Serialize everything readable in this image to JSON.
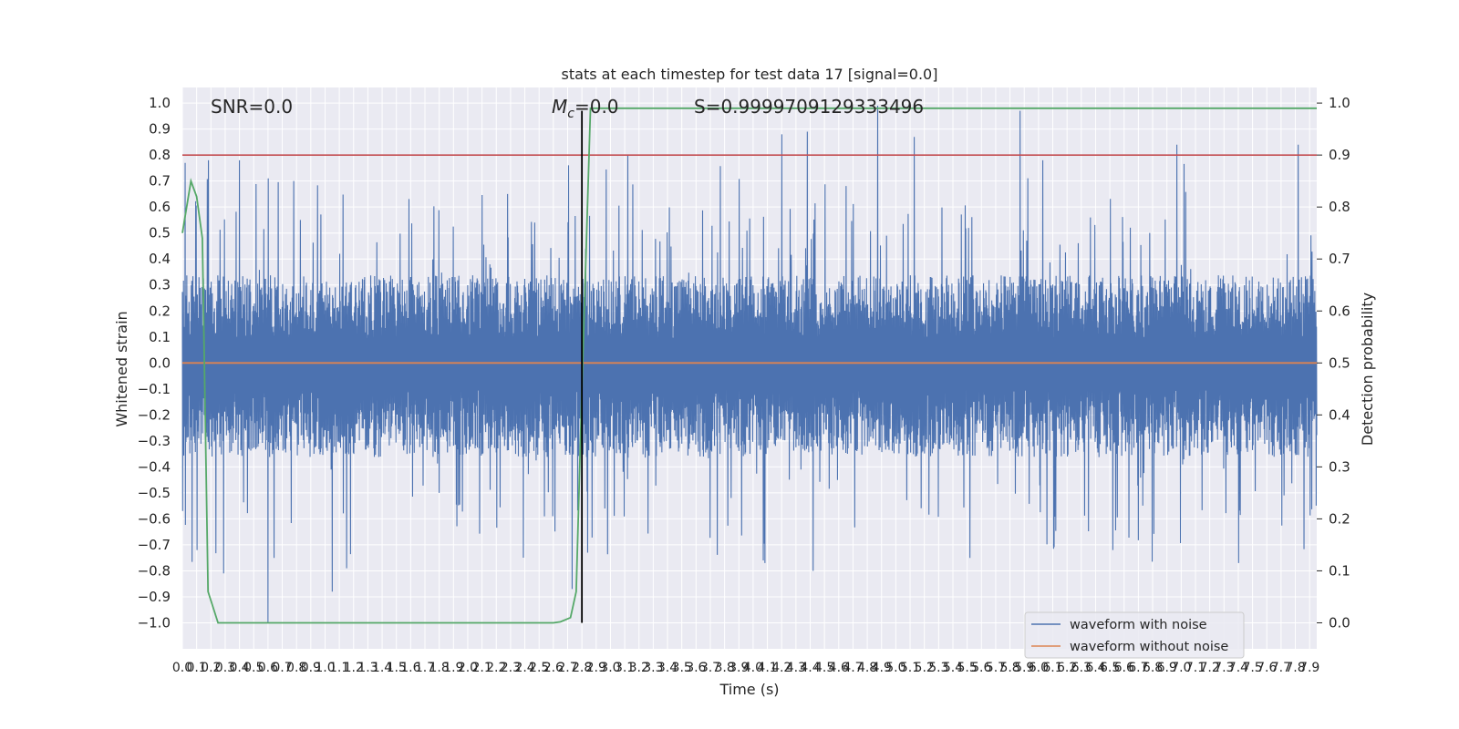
{
  "chart_data": {
    "type": "line",
    "title": "stats at each timestep for test data 17 [signal=0.0]",
    "xlabel": "Time (s)",
    "ylabel": "Whitened strain",
    "ylabel_right": "Detection probability",
    "xlim": [
      0.0,
      7.95
    ],
    "ylim": [
      -1.1,
      1.06
    ],
    "ylim_right": [
      -0.05,
      1.03
    ],
    "grid": true,
    "x_ticks": [
      "0.0",
      "0.1",
      "0.2",
      "0.3",
      "0.4",
      "0.5",
      "0.6",
      "0.7",
      "0.8",
      "0.9",
      "1.0",
      "1.1",
      "1.2",
      "1.3",
      "1.4",
      "1.5",
      "1.6",
      "1.7",
      "1.8",
      "1.9",
      "2.0",
      "2.1",
      "2.2",
      "2.3",
      "2.4",
      "2.5",
      "2.6",
      "2.7",
      "2.8",
      "2.9",
      "3.0",
      "3.1",
      "3.2",
      "3.3",
      "3.4",
      "3.5",
      "3.6",
      "3.7",
      "3.8",
      "3.9",
      "4.0",
      "4.1",
      "4.2",
      "4.3",
      "4.4",
      "4.5",
      "4.6",
      "4.7",
      "4.8",
      "4.9",
      "5.0",
      "5.1",
      "5.2",
      "5.3",
      "5.4",
      "5.5",
      "5.6",
      "5.7",
      "5.8",
      "5.9",
      "6.0",
      "6.1",
      "6.2",
      "6.3",
      "6.4",
      "6.5",
      "6.6",
      "6.7",
      "6.8",
      "6.9",
      "7.0",
      "7.1",
      "7.2",
      "7.3",
      "7.4",
      "7.5",
      "7.6",
      "7.7",
      "7.8",
      "7.9"
    ],
    "y_ticks_left": [
      "1.0",
      "0.9",
      "0.8",
      "0.7",
      "0.6",
      "0.5",
      "0.4",
      "0.3",
      "0.2",
      "0.1",
      "0.0",
      "−0.1",
      "−0.2",
      "−0.3",
      "−0.4",
      "−0.5",
      "−0.6",
      "−0.7",
      "−0.8",
      "−0.9",
      "−1.0"
    ],
    "y_ticks_right": [
      "1.0",
      "0.9",
      "0.8",
      "0.7",
      "0.6",
      "0.5",
      "0.4",
      "0.3",
      "0.2",
      "0.1",
      "0.0"
    ],
    "annotations": {
      "snr": "SNR=0.0",
      "mc_symbol": "M",
      "mc_subscript": "c",
      "mc_value": "=0.0",
      "s": "S=0.9999709129333496"
    },
    "legend": {
      "placement": "lower-right",
      "entries": [
        "waveform with noise",
        "waveform without noise"
      ]
    },
    "colors": {
      "noise": "#4c72b0",
      "clean": "#dd8452",
      "probability": "#55a868",
      "threshold": "#c44e52",
      "marker": "#000000",
      "plot_bg": "#eaeaf2",
      "grid": "#ffffff"
    },
    "series": [
      {
        "name": "waveform with noise",
        "kind": "dense-noise",
        "samples": 4096,
        "envelope_upper": 0.27,
        "envelope_lower": -0.29,
        "spikes": [
          {
            "x": 0.02,
            "y": 0.77
          },
          {
            "x": 0.18,
            "y": 0.78
          },
          {
            "x": 0.4,
            "y": 0.78
          },
          {
            "x": 0.6,
            "y": 0.71
          },
          {
            "x": 0.78,
            "y": 0.7
          },
          {
            "x": 2.28,
            "y": 0.65
          },
          {
            "x": 3.12,
            "y": 0.8
          },
          {
            "x": 4.2,
            "y": 0.88
          },
          {
            "x": 4.38,
            "y": 0.89
          },
          {
            "x": 4.87,
            "y": 0.99
          },
          {
            "x": 5.13,
            "y": 0.87
          },
          {
            "x": 5.87,
            "y": 0.97
          },
          {
            "x": 6.03,
            "y": 0.78
          },
          {
            "x": 6.97,
            "y": 0.84
          },
          {
            "x": 7.82,
            "y": 0.84
          },
          {
            "x": 0.1,
            "y": -0.72
          },
          {
            "x": 0.29,
            "y": -0.81
          },
          {
            "x": 0.6,
            "y": -1.0
          },
          {
            "x": 0.64,
            "y": -0.75
          },
          {
            "x": 1.05,
            "y": -0.88
          },
          {
            "x": 1.15,
            "y": -0.79
          },
          {
            "x": 2.73,
            "y": -0.87
          },
          {
            "x": 2.84,
            "y": -0.73
          },
          {
            "x": 4.08,
            "y": -0.77
          },
          {
            "x": 4.42,
            "y": -0.8
          },
          {
            "x": 5.52,
            "y": -0.75
          },
          {
            "x": 6.52,
            "y": -0.72
          },
          {
            "x": 7.4,
            "y": -0.77
          }
        ]
      },
      {
        "name": "waveform without noise",
        "kind": "line",
        "x": [
          0.0,
          7.95
        ],
        "y": [
          0.0,
          0.0
        ]
      },
      {
        "name": "detection probability",
        "axis": "right",
        "kind": "line",
        "x": [
          0.0,
          0.06,
          0.1,
          0.14,
          0.18,
          0.25,
          2.55,
          2.6,
          2.65,
          2.72,
          2.76,
          2.8,
          2.86,
          7.95
        ],
        "y": [
          0.75,
          0.85,
          0.82,
          0.74,
          0.06,
          0.0,
          0.0,
          0.0,
          0.002,
          0.01,
          0.06,
          0.45,
          0.99,
          0.99
        ]
      },
      {
        "name": "threshold",
        "axis": "right",
        "kind": "hline",
        "y": 0.9
      },
      {
        "name": "event marker",
        "kind": "vline",
        "x": 2.8,
        "ymin": -1.0,
        "ymax": 0.97
      }
    ]
  }
}
